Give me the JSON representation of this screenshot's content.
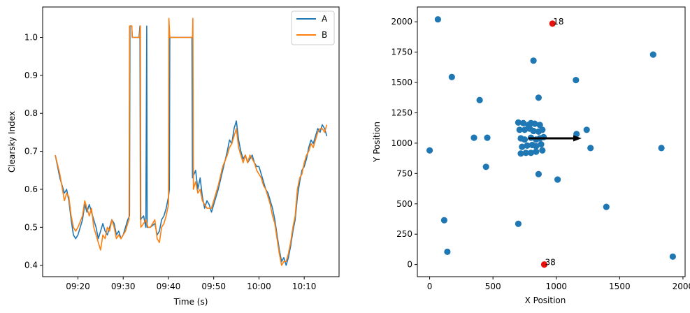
{
  "colors": {
    "series_a": "#1f77b4",
    "series_b": "#ff7f0e",
    "highlight": "#e8120c",
    "arrow": "#000000"
  },
  "chart_data": [
    {
      "type": "line",
      "xlabel": "Time (s)",
      "ylabel": "Clearsky Index",
      "x_ticks": [
        "09:20",
        "09:30",
        "09:40",
        "09:50",
        "10:00",
        "10:10"
      ],
      "x_tick_minutes": [
        20,
        30,
        40,
        50,
        60,
        70
      ],
      "xlim_minutes": [
        12.2,
        77.7
      ],
      "ylim": [
        0.37,
        1.08
      ],
      "y_ticks": [
        0.4,
        0.5,
        0.6,
        0.7,
        0.8,
        0.9,
        1.0
      ],
      "y_tick_labels": [
        "0.4",
        "0.5",
        "0.6",
        "0.7",
        "0.8",
        "0.9",
        "1.0"
      ],
      "legend": {
        "placement": "top-right",
        "entries": [
          "A",
          "B"
        ]
      },
      "grid": false,
      "series": [
        {
          "name": "A",
          "points": [
            [
              15,
              0.69
            ],
            [
              16,
              0.63
            ],
            [
              17,
              0.59
            ],
            [
              17.5,
              0.6
            ],
            [
              18,
              0.57
            ],
            [
              18.5,
              0.52
            ],
            [
              19,
              0.48
            ],
            [
              19.5,
              0.47
            ],
            [
              20,
              0.48
            ],
            [
              21,
              0.52
            ],
            [
              21.5,
              0.56
            ],
            [
              22,
              0.54
            ],
            [
              22.5,
              0.56
            ],
            [
              23,
              0.54
            ],
            [
              23.5,
              0.52
            ],
            [
              24,
              0.5
            ],
            [
              24.5,
              0.47
            ],
            [
              25,
              0.49
            ],
            [
              25.5,
              0.51
            ],
            [
              26,
              0.49
            ],
            [
              26.5,
              0.48
            ],
            [
              27,
              0.5
            ],
            [
              27.5,
              0.52
            ],
            [
              28,
              0.51
            ],
            [
              28.5,
              0.48
            ],
            [
              29,
              0.49
            ],
            [
              29.5,
              0.47
            ],
            [
              30,
              0.48
            ],
            [
              30.5,
              0.5
            ],
            [
              31,
              0.52
            ],
            [
              31.4,
              0.53
            ],
            [
              31.5,
              1.03
            ],
            [
              31.9,
              1.03
            ],
            [
              32.0,
              1.0
            ],
            [
              33.5,
              1.0
            ],
            [
              33.7,
              1.03
            ],
            [
              33.8,
              0.52
            ],
            [
              34.5,
              0.53
            ],
            [
              35,
              0.5
            ],
            [
              35.2,
              1.03
            ],
            [
              35.3,
              0.5
            ],
            [
              36,
              0.5
            ],
            [
              37,
              0.51
            ],
            [
              37.5,
              0.48
            ],
            [
              38,
              0.49
            ],
            [
              38.5,
              0.52
            ],
            [
              39,
              0.53
            ],
            [
              39.5,
              0.55
            ],
            [
              40,
              0.58
            ],
            [
              40.2,
              0.6
            ],
            [
              40.3,
              1.0
            ],
            [
              45.2,
              1.0
            ],
            [
              45.3,
              0.63
            ],
            [
              46,
              0.65
            ],
            [
              46.5,
              0.6
            ],
            [
              47,
              0.63
            ],
            [
              47.5,
              0.58
            ],
            [
              48,
              0.55
            ],
            [
              48.5,
              0.57
            ],
            [
              49,
              0.56
            ],
            [
              49.5,
              0.54
            ],
            [
              50,
              0.56
            ],
            [
              51,
              0.6
            ],
            [
              52,
              0.65
            ],
            [
              53,
              0.7
            ],
            [
              53.5,
              0.73
            ],
            [
              54,
              0.72
            ],
            [
              54.5,
              0.76
            ],
            [
              55,
              0.78
            ],
            [
              55.5,
              0.73
            ],
            [
              56,
              0.7
            ],
            [
              56.5,
              0.68
            ],
            [
              57,
              0.69
            ],
            [
              57.5,
              0.67
            ],
            [
              58,
              0.68
            ],
            [
              58.5,
              0.69
            ],
            [
              59,
              0.67
            ],
            [
              59.5,
              0.66
            ],
            [
              60,
              0.66
            ],
            [
              60.5,
              0.64
            ],
            [
              61,
              0.62
            ],
            [
              61.5,
              0.6
            ],
            [
              62,
              0.59
            ],
            [
              62.5,
              0.57
            ],
            [
              63,
              0.55
            ],
            [
              63.5,
              0.52
            ],
            [
              64,
              0.48
            ],
            [
              64.5,
              0.44
            ],
            [
              65,
              0.41
            ],
            [
              65.5,
              0.42
            ],
            [
              66,
              0.4
            ],
            [
              66.5,
              0.42
            ],
            [
              67,
              0.45
            ],
            [
              67.5,
              0.49
            ],
            [
              68,
              0.52
            ],
            [
              68.5,
              0.58
            ],
            [
              69,
              0.62
            ],
            [
              69.5,
              0.65
            ],
            [
              70,
              0.66
            ],
            [
              70.5,
              0.68
            ],
            [
              71,
              0.71
            ],
            [
              71.5,
              0.73
            ],
            [
              72,
              0.72
            ],
            [
              72.5,
              0.74
            ],
            [
              73,
              0.76
            ],
            [
              73.5,
              0.75
            ],
            [
              74,
              0.77
            ],
            [
              74.5,
              0.76
            ],
            [
              75,
              0.74
            ]
          ]
        },
        {
          "name": "B",
          "points": [
            [
              15,
              0.69
            ],
            [
              16,
              0.64
            ],
            [
              17,
              0.57
            ],
            [
              17.5,
              0.59
            ],
            [
              18,
              0.58
            ],
            [
              18.5,
              0.53
            ],
            [
              19,
              0.5
            ],
            [
              19.5,
              0.49
            ],
            [
              20,
              0.5
            ],
            [
              21,
              0.53
            ],
            [
              21.5,
              0.57
            ],
            [
              22,
              0.55
            ],
            [
              22.5,
              0.53
            ],
            [
              23,
              0.55
            ],
            [
              23.5,
              0.5
            ],
            [
              24,
              0.48
            ],
            [
              24.5,
              0.46
            ],
            [
              25,
              0.44
            ],
            [
              25.5,
              0.48
            ],
            [
              26,
              0.47
            ],
            [
              26.5,
              0.5
            ],
            [
              27,
              0.49
            ],
            [
              27.5,
              0.52
            ],
            [
              28,
              0.5
            ],
            [
              28.5,
              0.47
            ],
            [
              29,
              0.48
            ],
            [
              29.5,
              0.47
            ],
            [
              30,
              0.48
            ],
            [
              30.5,
              0.49
            ],
            [
              31,
              0.51
            ],
            [
              31.3,
              0.52
            ],
            [
              31.4,
              1.03
            ],
            [
              31.9,
              1.03
            ],
            [
              32.0,
              1.0
            ],
            [
              33.6,
              1.0
            ],
            [
              33.8,
              1.03
            ],
            [
              33.9,
              0.5
            ],
            [
              34.5,
              0.51
            ],
            [
              35,
              0.52
            ],
            [
              35.5,
              0.5
            ],
            [
              36,
              0.5
            ],
            [
              37,
              0.52
            ],
            [
              37.5,
              0.47
            ],
            [
              38,
              0.46
            ],
            [
              38.5,
              0.5
            ],
            [
              39,
              0.51
            ],
            [
              39.5,
              0.53
            ],
            [
              40,
              0.56
            ],
            [
              40.1,
              1.05
            ],
            [
              40.3,
              1.0
            ],
            [
              45.3,
              1.0
            ],
            [
              45.4,
              1.05
            ],
            [
              45.5,
              0.6
            ],
            [
              46,
              0.62
            ],
            [
              46.5,
              0.59
            ],
            [
              47,
              0.6
            ],
            [
              47.5,
              0.57
            ],
            [
              48,
              0.56
            ],
            [
              48.5,
              0.55
            ],
            [
              49,
              0.55
            ],
            [
              49.5,
              0.55
            ],
            [
              50,
              0.57
            ],
            [
              51,
              0.61
            ],
            [
              52,
              0.66
            ],
            [
              53,
              0.69
            ],
            [
              53.5,
              0.71
            ],
            [
              54,
              0.72
            ],
            [
              54.5,
              0.74
            ],
            [
              55,
              0.76
            ],
            [
              55.5,
              0.71
            ],
            [
              56,
              0.69
            ],
            [
              56.5,
              0.67
            ],
            [
              57,
              0.69
            ],
            [
              57.5,
              0.67
            ],
            [
              58,
              0.69
            ],
            [
              58.5,
              0.68
            ],
            [
              59,
              0.67
            ],
            [
              59.5,
              0.65
            ],
            [
              60,
              0.64
            ],
            [
              60.5,
              0.63
            ],
            [
              61,
              0.61
            ],
            [
              61.5,
              0.6
            ],
            [
              62,
              0.58
            ],
            [
              62.5,
              0.56
            ],
            [
              63,
              0.53
            ],
            [
              63.5,
              0.51
            ],
            [
              64,
              0.47
            ],
            [
              64.5,
              0.43
            ],
            [
              65,
              0.4
            ],
            [
              65.5,
              0.41
            ],
            [
              66,
              0.41
            ],
            [
              66.5,
              0.43
            ],
            [
              67,
              0.46
            ],
            [
              67.5,
              0.5
            ],
            [
              68,
              0.53
            ],
            [
              68.5,
              0.6
            ],
            [
              69,
              0.63
            ],
            [
              69.5,
              0.64
            ],
            [
              70,
              0.67
            ],
            [
              70.5,
              0.69
            ],
            [
              71,
              0.7
            ],
            [
              71.5,
              0.72
            ],
            [
              72,
              0.71
            ],
            [
              72.5,
              0.73
            ],
            [
              73,
              0.75
            ],
            [
              73.5,
              0.76
            ],
            [
              74,
              0.76
            ],
            [
              74.5,
              0.75
            ],
            [
              75,
              0.77
            ]
          ]
        }
      ]
    },
    {
      "type": "scatter",
      "xlabel": "X Position",
      "ylabel": "Y Position",
      "xlim": [
        -97,
        2017
      ],
      "ylim": [
        -100,
        2122
      ],
      "x_ticks": [
        0,
        500,
        1000,
        1500,
        2000
      ],
      "x_tick_labels": [
        "0",
        "500",
        "1000",
        "1500",
        "2000"
      ],
      "y_ticks": [
        0,
        250,
        500,
        750,
        1000,
        1250,
        1500,
        1750,
        2000
      ],
      "y_tick_labels": [
        "0",
        "250",
        "500",
        "750",
        "1000",
        "1250",
        "1500",
        "1750",
        "2000"
      ],
      "grid": false,
      "points": [
        [
          65,
          2020
        ],
        [
          175,
          1545
        ],
        [
          395,
          1355
        ],
        [
          350,
          1045
        ],
        [
          455,
          1045
        ],
        [
          445,
          805
        ],
        [
          0,
          940
        ],
        [
          115,
          365
        ],
        [
          140,
          105
        ],
        [
          700,
          335
        ],
        [
          820,
          1680
        ],
        [
          860,
          1375
        ],
        [
          1155,
          1520
        ],
        [
          1765,
          1730
        ],
        [
          1830,
          960
        ],
        [
          1920,
          65
        ],
        [
          1395,
          475
        ],
        [
          1010,
          700
        ],
        [
          860,
          745
        ],
        [
          1240,
          1110
        ],
        [
          1160,
          1075
        ],
        [
          1270,
          960
        ],
        [
          700,
          1170
        ],
        [
          740,
          1165
        ],
        [
          780,
          1150
        ],
        [
          800,
          1165
        ],
        [
          830,
          1160
        ],
        [
          870,
          1150
        ],
        [
          710,
          1110
        ],
        [
          750,
          1110
        ],
        [
          790,
          1120
        ],
        [
          820,
          1100
        ],
        [
          860,
          1095
        ],
        [
          890,
          1110
        ],
        [
          720,
          1040
        ],
        [
          750,
          1030
        ],
        [
          800,
          1045
        ],
        [
          840,
          1030
        ],
        [
          870,
          1040
        ],
        [
          900,
          1050
        ],
        [
          730,
          970
        ],
        [
          770,
          980
        ],
        [
          810,
          985
        ],
        [
          840,
          975
        ],
        [
          880,
          990
        ],
        [
          890,
          940
        ],
        [
          840,
          930
        ],
        [
          800,
          920
        ],
        [
          760,
          920
        ],
        [
          720,
          915
        ]
      ],
      "highlighted": [
        {
          "label": "18",
          "x": 970,
          "y": 1985
        },
        {
          "label": "38",
          "x": 905,
          "y": 0
        }
      ],
      "arrow": {
        "from": [
          780,
          1040
        ],
        "to": [
          1200,
          1040
        ]
      }
    }
  ]
}
